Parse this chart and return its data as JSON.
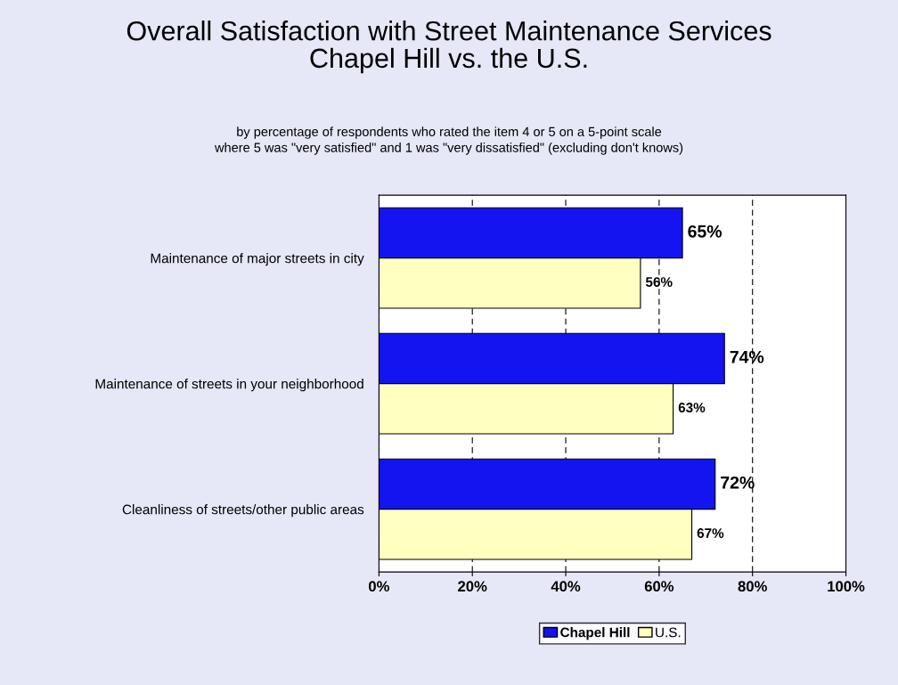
{
  "chart_data": {
    "type": "bar",
    "orientation": "horizontal",
    "title": "Overall Satisfaction with Street Maintenance Services\nChapel Hill vs. the U.S.",
    "subtitle": "by percentage of respondents who rated the item 4 or 5 on a 5-point scale\nwhere 5 was \"very satisfied\" and 1 was \"very dissatisfied\" (excluding don't knows)",
    "categories": [
      "Maintenance of major streets in city",
      "Maintenance of streets in your neighborhood",
      "Cleanliness of streets/other public areas"
    ],
    "series": [
      {
        "name": "Chapel Hill",
        "color": "#1414f0",
        "values": [
          65,
          74,
          72
        ],
        "value_labels": [
          "65%",
          "74%",
          "72%"
        ]
      },
      {
        "name": "U.S.",
        "color": "#ffffc0",
        "values": [
          56,
          63,
          67
        ],
        "value_labels": [
          "56%",
          "63%",
          "67%"
        ]
      }
    ],
    "xlim": [
      0,
      100
    ],
    "xticks": [
      {
        "value": 0,
        "label": "0%"
      },
      {
        "value": 20,
        "label": "20%"
      },
      {
        "value": 40,
        "label": "40%"
      },
      {
        "value": 60,
        "label": "60%"
      },
      {
        "value": 80,
        "label": "80%"
      },
      {
        "value": 100,
        "label": "100%"
      }
    ],
    "grid": "x",
    "legend": "bottom"
  }
}
